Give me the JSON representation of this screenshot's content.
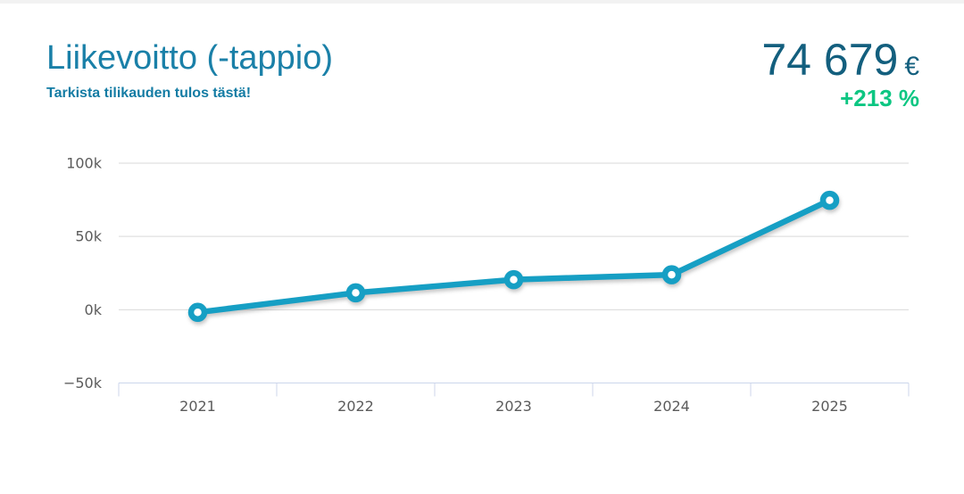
{
  "page": {
    "background_strip_color": "#f2f2f2"
  },
  "header": {
    "title": "Liikevoitto (-tappio)",
    "subtitle": "Tarkista tilikauden tulos tästä!",
    "value": "74 679",
    "currency": "€",
    "change": "+213 %",
    "title_color": "#1a80a8",
    "value_color": "#135f7e",
    "change_color": "#0cc682"
  },
  "chart_data": {
    "type": "line",
    "title": "",
    "xlabel": "",
    "ylabel": "",
    "categories": [
      "2021",
      "2022",
      "2023",
      "2024",
      "2025"
    ],
    "series": [
      {
        "name": "Liikevoitto",
        "values": [
          -1800,
          11500,
          20500,
          23859,
          74679
        ]
      }
    ],
    "ylim": [
      -50000,
      100000
    ],
    "yticks": [
      {
        "label": "100k",
        "value": 100000
      },
      {
        "label": "50k",
        "value": 50000
      },
      {
        "label": "0k",
        "value": 0
      },
      {
        "label": "−50k",
        "value": -50000
      }
    ],
    "grid": true,
    "legend": "none",
    "colors": {
      "line": "#169fc4",
      "marker_fill": "#ffffff",
      "grid": "#d9d9d9",
      "axis": "#ccd6eb",
      "tick_label": "#5b5b5b"
    }
  }
}
